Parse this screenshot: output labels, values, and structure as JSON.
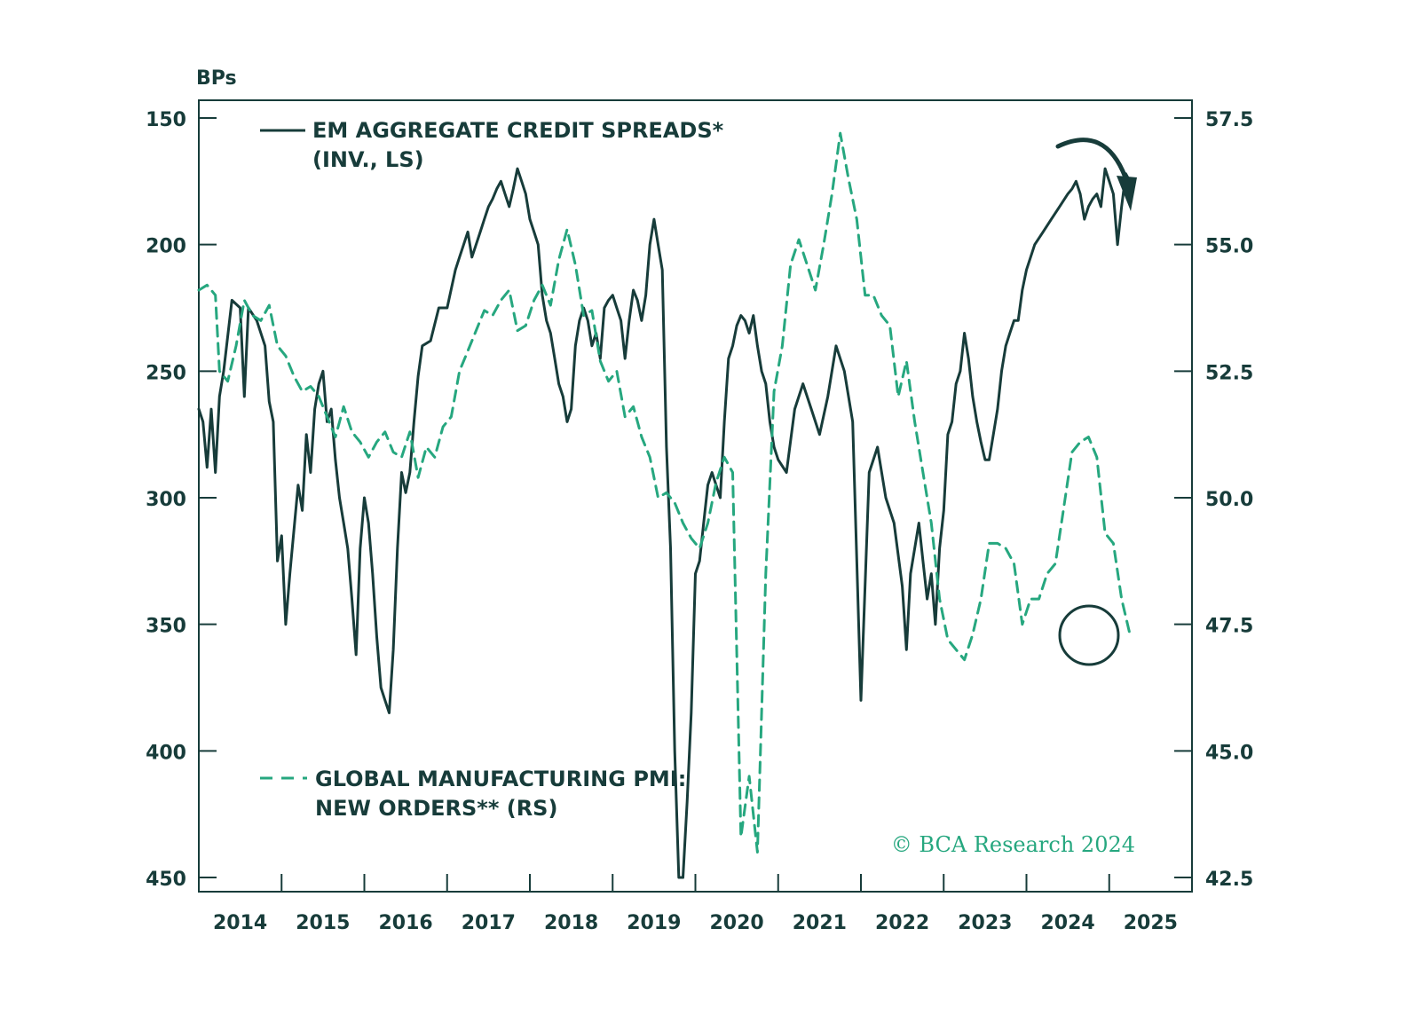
{
  "chart_data": {
    "type": "line",
    "title": "",
    "axis_unit_label": "BPs",
    "left_axis": {
      "label": "BPs",
      "inverted": true,
      "range": [
        150,
        450
      ],
      "ticks": [
        150,
        200,
        250,
        300,
        350,
        400,
        450
      ],
      "tick_labels": [
        "150",
        "200",
        "250",
        "300",
        "350",
        "400",
        "450"
      ]
    },
    "right_axis": {
      "range": [
        42.5,
        57.5
      ],
      "ticks": [
        57.5,
        55.0,
        52.5,
        50.0,
        47.5,
        45.0,
        42.5
      ],
      "tick_labels": [
        "57.5",
        "55.0",
        "52.5",
        "50.0",
        "47.5",
        "45.0",
        "42.5"
      ]
    },
    "x_axis": {
      "range": [
        2013.5,
        2025.5
      ],
      "tick_positions": [
        2014,
        2015,
        2016,
        2017,
        2018,
        2019,
        2020,
        2021,
        2022,
        2023,
        2024,
        2025
      ],
      "tick_labels": [
        "2014",
        "2015",
        "2016",
        "2017",
        "2018",
        "2019",
        "2020",
        "2021",
        "2022",
        "2023",
        "2024",
        "2025"
      ]
    },
    "series": [
      {
        "name": "EM AGGREGATE CREDIT SPREADS*",
        "legend_line1": "EM AGGREGATE CREDIT SPREADS*",
        "legend_line2": "(INV., LS)",
        "axis": "left",
        "style": "solid",
        "color": "#173c3a",
        "x": [
          2013.5,
          2013.55,
          2013.6,
          2013.65,
          2013.7,
          2013.75,
          2013.8,
          2013.9,
          2014.0,
          2014.05,
          2014.1,
          2014.2,
          2014.3,
          2014.35,
          2014.4,
          2014.45,
          2014.5,
          2014.55,
          2014.6,
          2014.7,
          2014.75,
          2014.8,
          2014.85,
          2014.9,
          2014.95,
          2015.0,
          2015.05,
          2015.1,
          2015.15,
          2015.2,
          2015.25,
          2015.3,
          2015.35,
          2015.4,
          2015.45,
          2015.5,
          2015.55,
          2015.6,
          2015.65,
          2015.7,
          2015.75,
          2015.8,
          2015.85,
          2015.9,
          2015.95,
          2016.0,
          2016.05,
          2016.1,
          2016.15,
          2016.2,
          2016.3,
          2016.4,
          2016.5,
          2016.6,
          2016.65,
          2016.7,
          2016.75,
          2016.8,
          2016.85,
          2016.9,
          2016.95,
          2017.0,
          2017.05,
          2017.1,
          2017.15,
          2017.2,
          2017.25,
          2017.3,
          2017.35,
          2017.4,
          2017.45,
          2017.5,
          2017.55,
          2017.6,
          2017.65,
          2017.7,
          2017.75,
          2017.8,
          2017.85,
          2017.9,
          2017.95,
          2018.0,
          2018.05,
          2018.1,
          2018.15,
          2018.2,
          2018.25,
          2018.3,
          2018.35,
          2018.4,
          2018.45,
          2018.5,
          2018.55,
          2018.6,
          2018.65,
          2018.7,
          2018.75,
          2018.8,
          2018.85,
          2018.9,
          2018.95,
          2019.0,
          2019.05,
          2019.1,
          2019.15,
          2019.2,
          2019.25,
          2019.3,
          2019.35,
          2019.4,
          2019.45,
          2019.5,
          2019.55,
          2019.6,
          2019.65,
          2019.7,
          2019.75,
          2019.8,
          2019.85,
          2019.9,
          2019.95,
          2020.0,
          2020.05,
          2020.1,
          2020.15,
          2020.2,
          2020.25,
          2020.3,
          2020.35,
          2020.4,
          2020.45,
          2020.5,
          2020.6,
          2020.7,
          2020.8,
          2020.9,
          2021.0,
          2021.1,
          2021.2,
          2021.3,
          2021.4,
          2021.5,
          2021.6,
          2021.7,
          2021.8,
          2021.9,
          2022.0,
          2022.05,
          2022.1,
          2022.15,
          2022.2,
          2022.25,
          2022.3,
          2022.35,
          2022.4,
          2022.45,
          2022.5,
          2022.55,
          2022.6,
          2022.65,
          2022.7,
          2022.75,
          2022.8,
          2022.85,
          2022.9,
          2022.95,
          2023.0,
          2023.05,
          2023.1,
          2023.15,
          2023.2,
          2023.25,
          2023.3,
          2023.35,
          2023.4,
          2023.45,
          2023.5,
          2023.6,
          2023.7,
          2023.8,
          2023.9,
          2024.0,
          2024.05,
          2024.1,
          2024.15,
          2024.2,
          2024.25,
          2024.3,
          2024.35,
          2024.4,
          2024.45,
          2024.5,
          2024.55,
          2024.6,
          2024.65,
          2024.7,
          2024.75
        ],
        "values": [
          265,
          270,
          288,
          265,
          290,
          260,
          250,
          222,
          225,
          260,
          225,
          230,
          240,
          262,
          270,
          325,
          315,
          350,
          330,
          295,
          305,
          275,
          290,
          265,
          255,
          250,
          270,
          265,
          285,
          300,
          310,
          320,
          340,
          362,
          320,
          300,
          310,
          330,
          355,
          375,
          380,
          385,
          360,
          320,
          290,
          298,
          290,
          270,
          252,
          240,
          238,
          225,
          225,
          210,
          205,
          200,
          195,
          205,
          200,
          195,
          190,
          185,
          182,
          178,
          175,
          180,
          185,
          178,
          170,
          175,
          180,
          190,
          195,
          200,
          220,
          230,
          235,
          245,
          255,
          260,
          270,
          265,
          240,
          230,
          225,
          230,
          240,
          235,
          245,
          225,
          222,
          220,
          225,
          230,
          245,
          230,
          218,
          222,
          230,
          220,
          200,
          190,
          200,
          210,
          280,
          320,
          400,
          450,
          450,
          420,
          385,
          330,
          325,
          310,
          295,
          290,
          295,
          300,
          270,
          245,
          240,
          232,
          228,
          230,
          235,
          228,
          240,
          250,
          255,
          270,
          280,
          285,
          290,
          265,
          255,
          265,
          275,
          260,
          240,
          250,
          270,
          380,
          290,
          280,
          300,
          310,
          335,
          360,
          330,
          320,
          310,
          325,
          340,
          330,
          350,
          320,
          305,
          275,
          270,
          255,
          250,
          235,
          245,
          260,
          270,
          278,
          285,
          285,
          275,
          265,
          250,
          240,
          235,
          230,
          230,
          218,
          210,
          200,
          195,
          190,
          185,
          180,
          178,
          175,
          180,
          190,
          185,
          182,
          180,
          185,
          170,
          175,
          180,
          200,
          185,
          172,
          175
        ]
      },
      {
        "name": "GLOBAL MANUFACTURING PMI: NEW ORDERS**",
        "legend_line1": "GLOBAL MANUFACTURING PMI:",
        "legend_line2": "NEW ORDERS** (RS)",
        "axis": "right",
        "style": "dashed",
        "color": "#26a77f",
        "x": [
          2013.5,
          2013.6,
          2013.7,
          2013.75,
          2013.85,
          2013.95,
          2014.05,
          2014.15,
          2014.25,
          2014.35,
          2014.45,
          2014.55,
          2014.65,
          2014.75,
          2014.85,
          2014.95,
          2015.05,
          2015.15,
          2015.25,
          2015.35,
          2015.45,
          2015.55,
          2015.65,
          2015.75,
          2015.85,
          2015.95,
          2016.05,
          2016.15,
          2016.25,
          2016.35,
          2016.45,
          2016.55,
          2016.65,
          2016.75,
          2016.85,
          2016.95,
          2017.05,
          2017.15,
          2017.25,
          2017.35,
          2017.45,
          2017.55,
          2017.65,
          2017.75,
          2017.85,
          2017.95,
          2018.05,
          2018.15,
          2018.25,
          2018.35,
          2018.45,
          2018.55,
          2018.65,
          2018.75,
          2018.85,
          2018.95,
          2019.05,
          2019.15,
          2019.25,
          2019.35,
          2019.45,
          2019.55,
          2019.65,
          2019.75,
          2019.85,
          2019.95,
          2020.05,
          2020.15,
          2020.25,
          2020.35,
          2020.45,
          2020.55,
          2020.65,
          2020.75,
          2020.85,
          2020.95,
          2021.05,
          2021.15,
          2021.25,
          2021.35,
          2021.45,
          2021.55,
          2021.65,
          2021.75,
          2021.85,
          2021.95,
          2022.05,
          2022.15,
          2022.25,
          2022.35,
          2022.45,
          2022.55,
          2022.65,
          2022.75,
          2022.85,
          2022.95,
          2023.05,
          2023.15,
          2023.25,
          2023.35,
          2023.45,
          2023.55,
          2023.65,
          2023.75,
          2023.85,
          2023.95,
          2024.05,
          2024.15,
          2024.25,
          2024.35,
          2024.45,
          2024.55,
          2024.65,
          2024.75
        ],
        "values": [
          54.1,
          54.2,
          54.0,
          52.5,
          52.3,
          53.0,
          53.9,
          53.6,
          53.5,
          53.8,
          53.0,
          52.8,
          52.4,
          52.1,
          52.2,
          52.0,
          51.6,
          51.2,
          51.8,
          51.3,
          51.1,
          50.8,
          51.1,
          51.3,
          50.9,
          50.8,
          51.3,
          50.4,
          51.0,
          50.8,
          51.4,
          51.6,
          52.5,
          52.9,
          53.3,
          53.7,
          53.6,
          53.9,
          54.1,
          53.3,
          53.4,
          53.9,
          54.2,
          53.8,
          54.7,
          55.3,
          54.6,
          53.6,
          53.7,
          52.7,
          52.3,
          52.5,
          51.6,
          51.8,
          51.2,
          50.8,
          50.0,
          50.1,
          49.9,
          49.5,
          49.2,
          49.0,
          49.5,
          50.3,
          50.8,
          50.5,
          43.3,
          44.5,
          43.0,
          48.5,
          52.1,
          53.0,
          54.6,
          55.1,
          54.6,
          54.1,
          55.0,
          56.0,
          57.2,
          56.3,
          55.5,
          54.0,
          54.0,
          53.6,
          53.4,
          52.0,
          52.7,
          51.5,
          50.5,
          49.5,
          48.0,
          47.2,
          47.0,
          46.8,
          47.3,
          48.0,
          49.1,
          49.1,
          49.0,
          48.7,
          47.5,
          48.0,
          48.0,
          48.5,
          48.7,
          49.8,
          50.9,
          51.1,
          51.2,
          50.8,
          49.3,
          49.1,
          48.0,
          47.3
        ]
      }
    ],
    "annotations": {
      "circle_label": "",
      "arrow_label": ""
    },
    "copyright": "© BCA Research 2024"
  },
  "colors": {
    "dark": "#173c3a",
    "green": "#26a77f",
    "axis": "#173c3a",
    "background": "#ffffff"
  }
}
